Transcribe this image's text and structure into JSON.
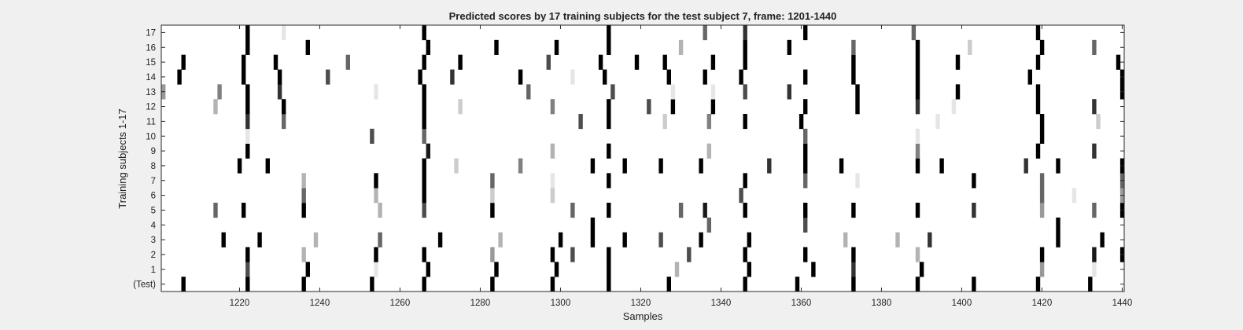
{
  "chart_data": {
    "type": "heatmap",
    "title": "Predicted scores by 17 training subjects for the test subject 7, frame: 1201-1440",
    "xlabel": "Samples",
    "ylabel": "Training subjects 1-17",
    "xlim": [
      1201,
      1440
    ],
    "x_ticks": [
      1220,
      1240,
      1260,
      1280,
      1300,
      1320,
      1340,
      1360,
      1380,
      1400,
      1420,
      1440
    ],
    "rows": [
      "(Test)",
      "1",
      "2",
      "3",
      "4",
      "5",
      "6",
      "7",
      "8",
      "9",
      "10",
      "11",
      "12",
      "13",
      "14",
      "15",
      "16",
      "17"
    ],
    "colormap": "gray (0 = white, 1 = black)",
    "grid": false,
    "legend": "none",
    "cells": {
      "(Test)": [
        [
          1206,
          1
        ],
        [
          1222,
          1
        ],
        [
          1236,
          1
        ],
        [
          1253,
          1
        ],
        [
          1266,
          1
        ],
        [
          1283,
          1
        ],
        [
          1298,
          1
        ],
        [
          1312,
          1
        ],
        [
          1327,
          1
        ],
        [
          1346,
          1
        ],
        [
          1359,
          1
        ],
        [
          1373,
          1
        ],
        [
          1389,
          1
        ],
        [
          1403,
          1
        ],
        [
          1419,
          1
        ],
        [
          1432,
          1
        ]
      ],
      "1": [
        [
          1222,
          0.7
        ],
        [
          1237,
          1
        ],
        [
          1254,
          0.1
        ],
        [
          1267,
          1
        ],
        [
          1284,
          1
        ],
        [
          1299,
          1
        ],
        [
          1312,
          1
        ],
        [
          1329,
          0.3
        ],
        [
          1347,
          1
        ],
        [
          1363,
          1
        ],
        [
          1373,
          0.8
        ],
        [
          1390,
          1
        ],
        [
          1420,
          0.4
        ],
        [
          1433,
          0.1
        ]
      ],
      "2": [
        [
          1222,
          1
        ],
        [
          1236,
          0.3
        ],
        [
          1254,
          1
        ],
        [
          1266,
          1
        ],
        [
          1283,
          0.4
        ],
        [
          1298,
          1
        ],
        [
          1303,
          0.7
        ],
        [
          1312,
          1
        ],
        [
          1332,
          0.7
        ],
        [
          1346,
          1
        ],
        [
          1361,
          1
        ],
        [
          1373,
          1
        ],
        [
          1389,
          0.3
        ],
        [
          1420,
          1
        ],
        [
          1433,
          0.9
        ],
        [
          1440,
          1
        ]
      ],
      "3": [
        [
          1216,
          1
        ],
        [
          1225,
          1
        ],
        [
          1239,
          0.3
        ],
        [
          1255,
          0.6
        ],
        [
          1270,
          1
        ],
        [
          1285,
          0.3
        ],
        [
          1300,
          1
        ],
        [
          1308,
          1
        ],
        [
          1316,
          1
        ],
        [
          1325,
          0.7
        ],
        [
          1335,
          1
        ],
        [
          1347,
          1
        ],
        [
          1371,
          0.3
        ],
        [
          1384,
          0.3
        ],
        [
          1392,
          0.8
        ],
        [
          1424,
          1
        ],
        [
          1435,
          1
        ]
      ],
      "4": [
        [
          1308,
          1
        ],
        [
          1337,
          0.6
        ],
        [
          1361,
          0.7
        ],
        [
          1424,
          1
        ]
      ],
      "5": [
        [
          1214,
          0.6
        ],
        [
          1221,
          1
        ],
        [
          1236,
          1
        ],
        [
          1255,
          0.3
        ],
        [
          1266,
          0.7
        ],
        [
          1283,
          1
        ],
        [
          1303,
          0.6
        ],
        [
          1312,
          1
        ],
        [
          1330,
          0.6
        ],
        [
          1336,
          0.9
        ],
        [
          1346,
          1
        ],
        [
          1361,
          1
        ],
        [
          1373,
          1
        ],
        [
          1389,
          1
        ],
        [
          1403,
          0.8
        ],
        [
          1420,
          0.4
        ],
        [
          1433,
          0.6
        ],
        [
          1440,
          1
        ]
      ],
      "6": [
        [
          1236,
          0.6
        ],
        [
          1254,
          0.3
        ],
        [
          1266,
          1
        ],
        [
          1283,
          0.2
        ],
        [
          1298,
          0.2
        ],
        [
          1345,
          0.7
        ],
        [
          1420,
          0.6
        ],
        [
          1428,
          0.1
        ],
        [
          1440,
          0.4
        ]
      ],
      "7": [
        [
          1236,
          0.3
        ],
        [
          1254,
          1
        ],
        [
          1266,
          1
        ],
        [
          1283,
          0.6
        ],
        [
          1298,
          0.1
        ],
        [
          1312,
          1
        ],
        [
          1346,
          1
        ],
        [
          1361,
          0.6
        ],
        [
          1374,
          0.1
        ],
        [
          1403,
          1
        ],
        [
          1420,
          0.6
        ],
        [
          1440,
          0.6
        ]
      ],
      "8": [
        [
          1220,
          1
        ],
        [
          1227,
          1
        ],
        [
          1266,
          1
        ],
        [
          1274,
          0.2
        ],
        [
          1290,
          0.5
        ],
        [
          1308,
          1
        ],
        [
          1316,
          1
        ],
        [
          1325,
          1
        ],
        [
          1335,
          1
        ],
        [
          1352,
          0.8
        ],
        [
          1361,
          1
        ],
        [
          1370,
          1
        ],
        [
          1389,
          1
        ],
        [
          1395,
          1
        ],
        [
          1416,
          0.8
        ],
        [
          1424,
          1
        ],
        [
          1440,
          1
        ]
      ],
      "9": [
        [
          1222,
          1
        ],
        [
          1267,
          0.9
        ],
        [
          1298,
          0.3
        ],
        [
          1312,
          1
        ],
        [
          1337,
          0.3
        ],
        [
          1361,
          1
        ],
        [
          1389,
          0.5
        ],
        [
          1419,
          1
        ],
        [
          1433,
          0.8
        ]
      ],
      "10": [
        [
          1222,
          0.1
        ],
        [
          1253,
          0.7
        ],
        [
          1266,
          0.6
        ],
        [
          1361,
          0.6
        ],
        [
          1389,
          0.1
        ],
        [
          1420,
          1
        ]
      ],
      "11": [
        [
          1222,
          0.8
        ],
        [
          1231,
          0.6
        ],
        [
          1266,
          1
        ],
        [
          1305,
          0.7
        ],
        [
          1312,
          1
        ],
        [
          1326,
          0.2
        ],
        [
          1337,
          0.5
        ],
        [
          1346,
          1
        ],
        [
          1360,
          1
        ],
        [
          1394,
          0.1
        ],
        [
          1420,
          1
        ],
        [
          1434,
          0.2
        ]
      ],
      "12": [
        [
          1214,
          0.3
        ],
        [
          1222,
          1
        ],
        [
          1231,
          1
        ],
        [
          1266,
          1
        ],
        [
          1275,
          0.2
        ],
        [
          1298,
          0.5
        ],
        [
          1312,
          1
        ],
        [
          1322,
          0.7
        ],
        [
          1328,
          1
        ],
        [
          1338,
          1
        ],
        [
          1361,
          1
        ],
        [
          1374,
          1
        ],
        [
          1389,
          0.8
        ],
        [
          1398,
          0.1
        ],
        [
          1419,
          1
        ],
        [
          1433,
          0.8
        ]
      ],
      "13": [
        [
          1201,
          0.4
        ],
        [
          1215,
          0.5
        ],
        [
          1222,
          1
        ],
        [
          1230,
          0.8
        ],
        [
          1254,
          0.1
        ],
        [
          1266,
          1
        ],
        [
          1292,
          0.6
        ],
        [
          1313,
          0.7
        ],
        [
          1328,
          0.1
        ],
        [
          1338,
          0.1
        ],
        [
          1346,
          0.7
        ],
        [
          1357,
          0.8
        ],
        [
          1374,
          1
        ],
        [
          1389,
          1
        ],
        [
          1399,
          1
        ],
        [
          1419,
          1
        ],
        [
          1440,
          1
        ]
      ],
      "14": [
        [
          1205,
          1
        ],
        [
          1221,
          1
        ],
        [
          1230,
          1
        ],
        [
          1242,
          0.7
        ],
        [
          1265,
          1
        ],
        [
          1273,
          0.8
        ],
        [
          1290,
          1
        ],
        [
          1303,
          0.1
        ],
        [
          1311,
          1
        ],
        [
          1327,
          1
        ],
        [
          1336,
          1
        ],
        [
          1345,
          1
        ],
        [
          1361,
          1
        ],
        [
          1373,
          1
        ],
        [
          1389,
          1
        ],
        [
          1417,
          1
        ],
        [
          1440,
          1
        ]
      ],
      "15": [
        [
          1206,
          1
        ],
        [
          1221,
          1
        ],
        [
          1229,
          1
        ],
        [
          1247,
          0.6
        ],
        [
          1266,
          1
        ],
        [
          1275,
          1
        ],
        [
          1297,
          0.7
        ],
        [
          1310,
          1
        ],
        [
          1319,
          1
        ],
        [
          1326,
          1
        ],
        [
          1338,
          1
        ],
        [
          1346,
          1
        ],
        [
          1373,
          1
        ],
        [
          1389,
          1
        ],
        [
          1399,
          1
        ],
        [
          1419,
          1
        ],
        [
          1439,
          1
        ]
      ],
      "16": [
        [
          1222,
          1
        ],
        [
          1237,
          1
        ],
        [
          1267,
          1
        ],
        [
          1284,
          1
        ],
        [
          1299,
          1
        ],
        [
          1312,
          1
        ],
        [
          1330,
          0.3
        ],
        [
          1346,
          1
        ],
        [
          1357,
          1
        ],
        [
          1373,
          0.6
        ],
        [
          1389,
          1
        ],
        [
          1402,
          0.2
        ],
        [
          1420,
          1
        ],
        [
          1433,
          0.6
        ]
      ],
      "17": [
        [
          1222,
          1
        ],
        [
          1231,
          0.1
        ],
        [
          1266,
          1
        ],
        [
          1312,
          1
        ],
        [
          1336,
          0.6
        ],
        [
          1346,
          0.8
        ],
        [
          1361,
          1
        ],
        [
          1388,
          0.6
        ],
        [
          1419,
          1
        ]
      ]
    }
  }
}
